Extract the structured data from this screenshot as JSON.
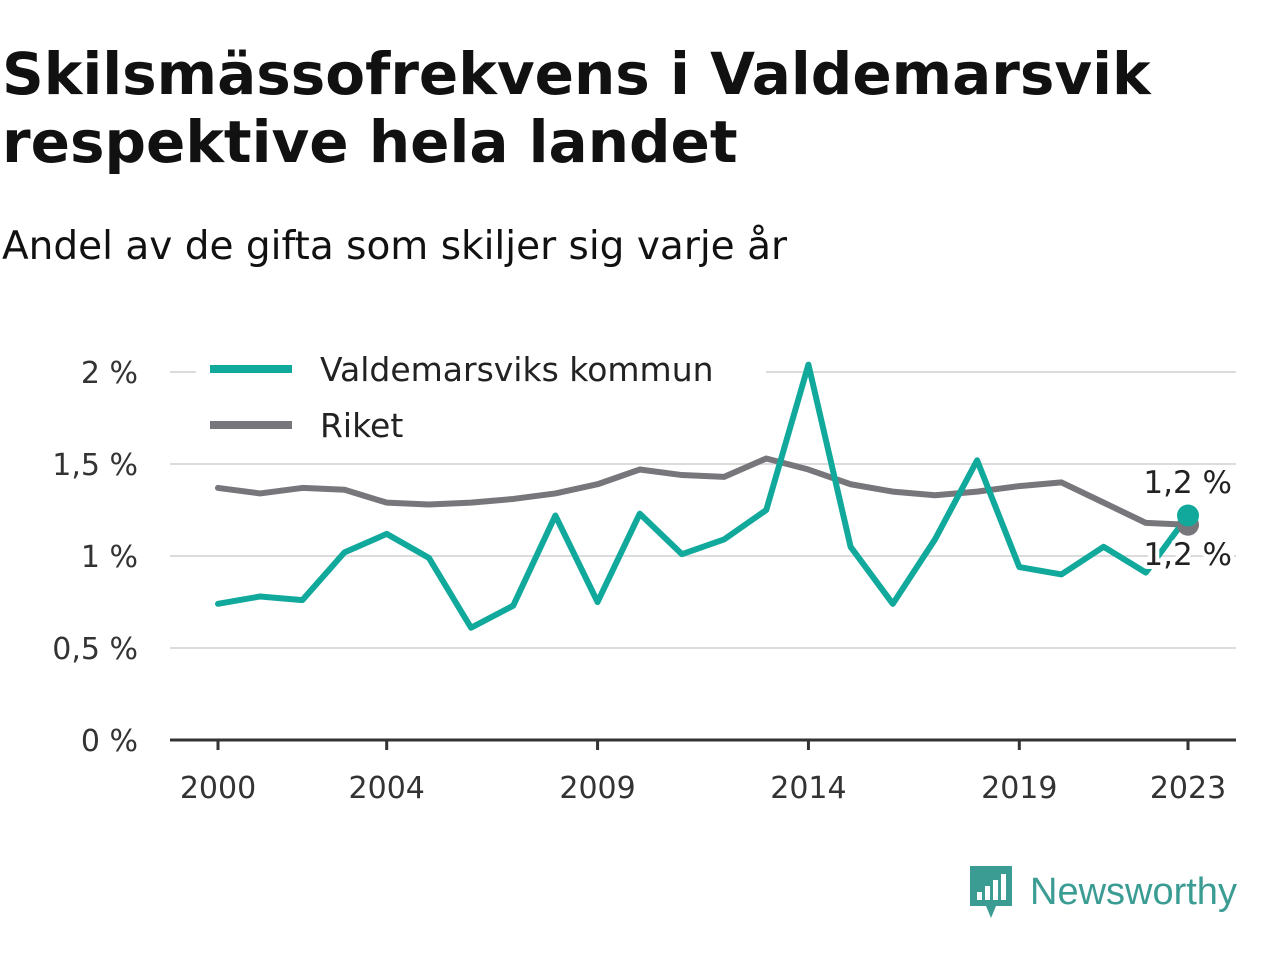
{
  "title": "Skilsmässofrekvens i Valdemarsvik respektive hela landet",
  "subtitle": "Andel av de gifta som skiljer sig varje år",
  "brand": {
    "name": "Newsworthy",
    "icon": "newsworthy-logo-icon"
  },
  "chart_data": {
    "type": "line",
    "x": [
      2000,
      2001,
      2002,
      2003,
      2004,
      2005,
      2006,
      2007,
      2008,
      2009,
      2010,
      2011,
      2012,
      2013,
      2014,
      2015,
      2016,
      2017,
      2018,
      2019,
      2020,
      2021,
      2022,
      2023
    ],
    "x_ticks": [
      "2000",
      "2004",
      "2009",
      "2014",
      "2019",
      "2023"
    ],
    "y_ticks": [
      "0 %",
      "0,5 %",
      "1 %",
      "1,5 %",
      "2 %"
    ],
    "y_tick_values": [
      0,
      0.5,
      1,
      1.5,
      2
    ],
    "ylim": [
      0,
      2
    ],
    "grid": true,
    "legend_position": "top-left",
    "series": [
      {
        "name": "Valdemarsviks kommun",
        "color": "#10a99c",
        "values": [
          0.74,
          0.78,
          0.76,
          1.02,
          1.12,
          0.99,
          0.61,
          0.73,
          1.22,
          0.75,
          1.23,
          1.01,
          1.09,
          1.25,
          2.04,
          1.05,
          0.74,
          1.09,
          1.52,
          0.94,
          0.9,
          1.05,
          0.91,
          1.22
        ],
        "end_label": "1,2 %"
      },
      {
        "name": "Riket",
        "color": "#77767b",
        "values": [
          1.37,
          1.34,
          1.37,
          1.36,
          1.29,
          1.28,
          1.29,
          1.31,
          1.34,
          1.39,
          1.47,
          1.44,
          1.43,
          1.53,
          1.47,
          1.39,
          1.35,
          1.33,
          1.35,
          1.38,
          1.4,
          1.29,
          1.18,
          1.17
        ],
        "end_label": "1,2 %"
      }
    ]
  }
}
